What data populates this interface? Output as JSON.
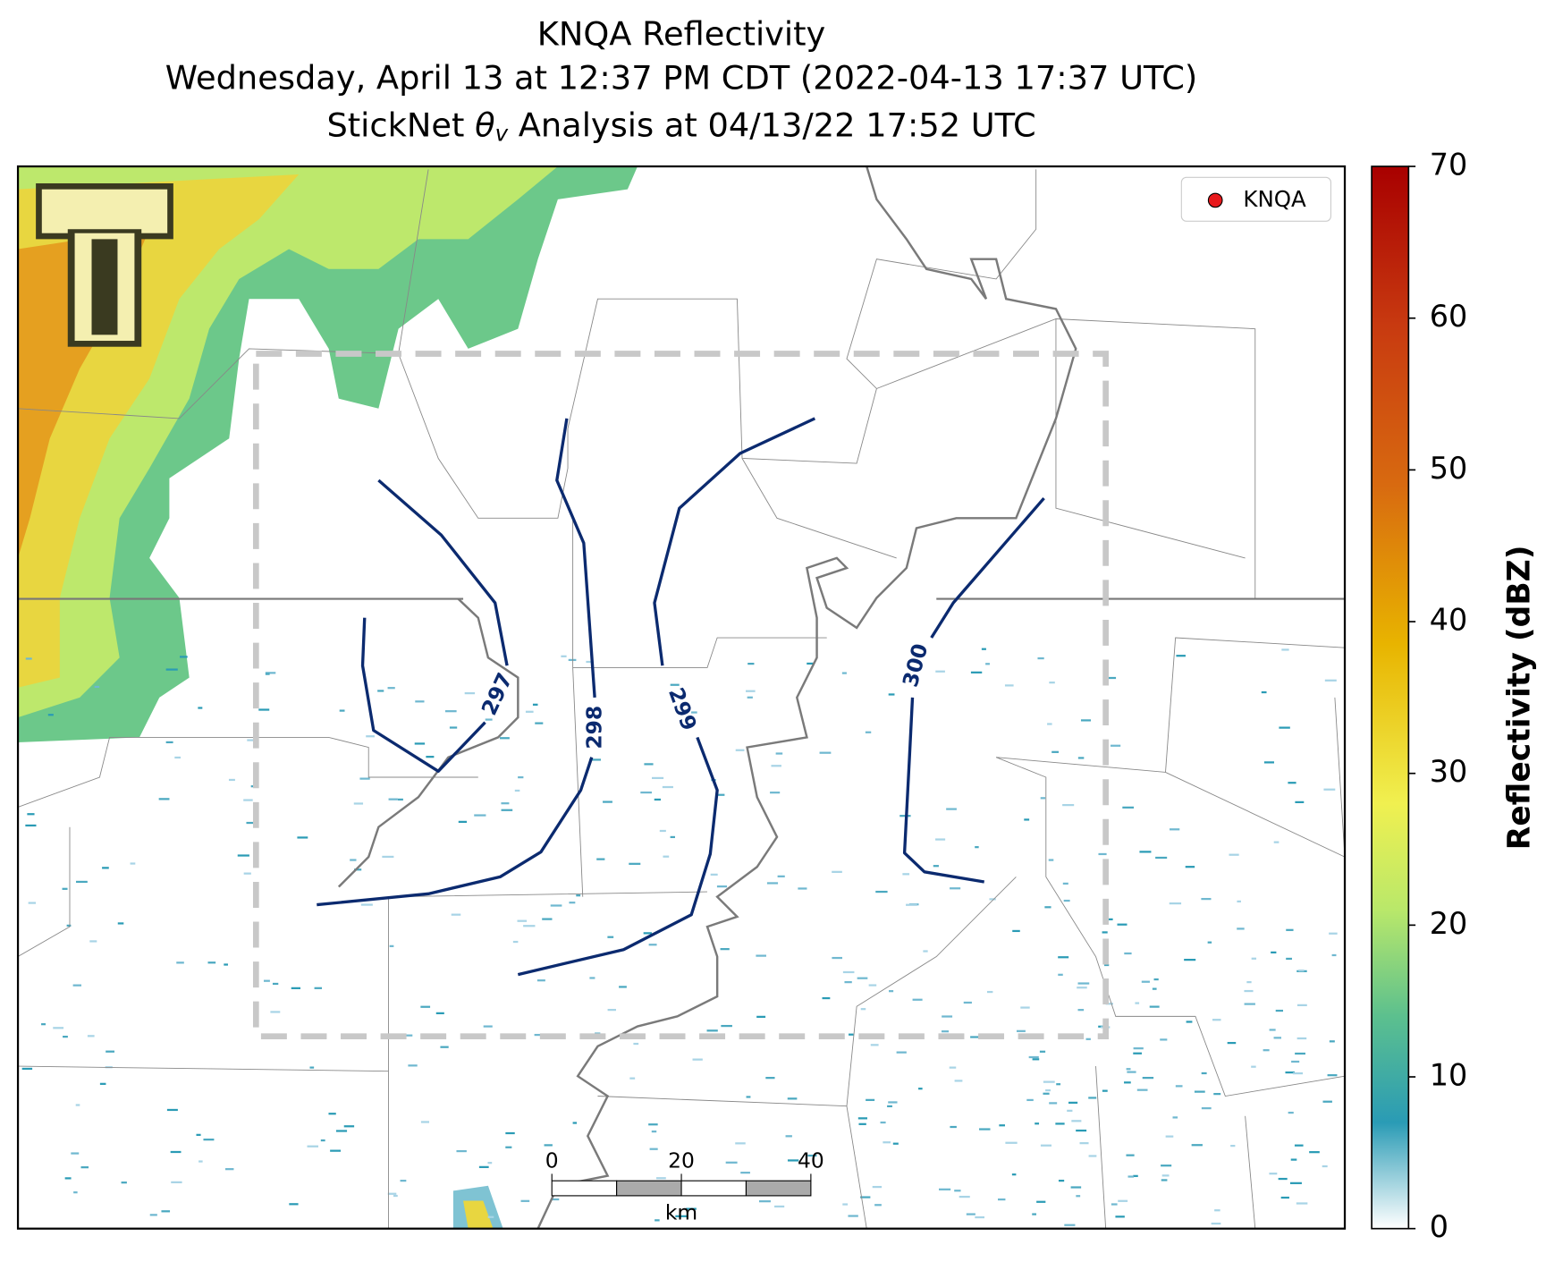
{
  "title": {
    "line1": "KNQA Reflectivity",
    "line2": "Wednesday, April 13 at 12:37 PM CDT (2022-04-13 17:37 UTC)",
    "line3": {
      "before": "StickNet ",
      "symbol": "θ",
      "subscript": "v",
      "after": " Analysis at 04/13/22 17:52 UTC"
    }
  },
  "legend": {
    "label": "KNQA"
  },
  "colorbar": {
    "label": "Reflectivity (dBZ)",
    "lim": [
      0,
      70
    ],
    "ticks": [
      0,
      10,
      20,
      30,
      40,
      50,
      60,
      70
    ]
  },
  "contours": [
    {
      "level": 297
    },
    {
      "level": 298
    },
    {
      "level": 299
    },
    {
      "level": 300
    }
  ],
  "scale_bar": {
    "lim": [
      0,
      40
    ],
    "ticks": [
      0,
      20,
      40
    ],
    "unit": "km"
  }
}
